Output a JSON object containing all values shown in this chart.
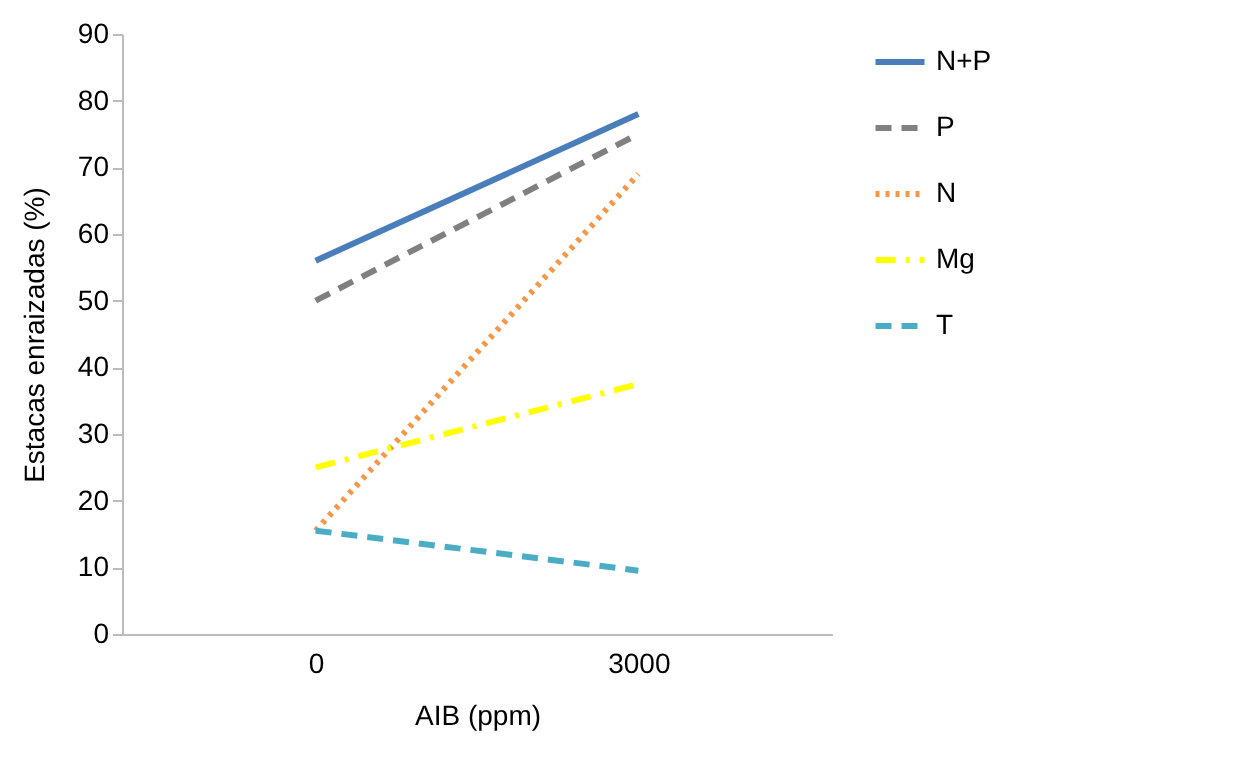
{
  "chart_data": {
    "type": "line",
    "xlabel": "AIB (ppm)",
    "ylabel": "Estacas enraizadas  (%)",
    "categories": [
      "0",
      "3000"
    ],
    "ylim": [
      0,
      90
    ],
    "yticks": [
      0,
      10,
      20,
      30,
      40,
      50,
      60,
      70,
      80,
      90
    ],
    "grid": false,
    "legend": "right",
    "marker": "none",
    "series": [
      {
        "name": "N+P",
        "color": "#4a7ebb",
        "line_style": "solid",
        "values": [
          56,
          78
        ]
      },
      {
        "name": "P",
        "color": "#808080",
        "line_style": "dashed",
        "values": [
          50,
          75
        ]
      },
      {
        "name": "N",
        "color": "#f79646",
        "line_style": "dotted",
        "values": [
          15.5,
          69
        ]
      },
      {
        "name": "Mg",
        "color": "#ffff00",
        "line_style": "dashdot",
        "values": [
          25,
          37.5
        ]
      },
      {
        "name": "T",
        "color": "#4bacc6",
        "line_style": "dashed",
        "values": [
          15.5,
          9.5
        ]
      }
    ]
  }
}
